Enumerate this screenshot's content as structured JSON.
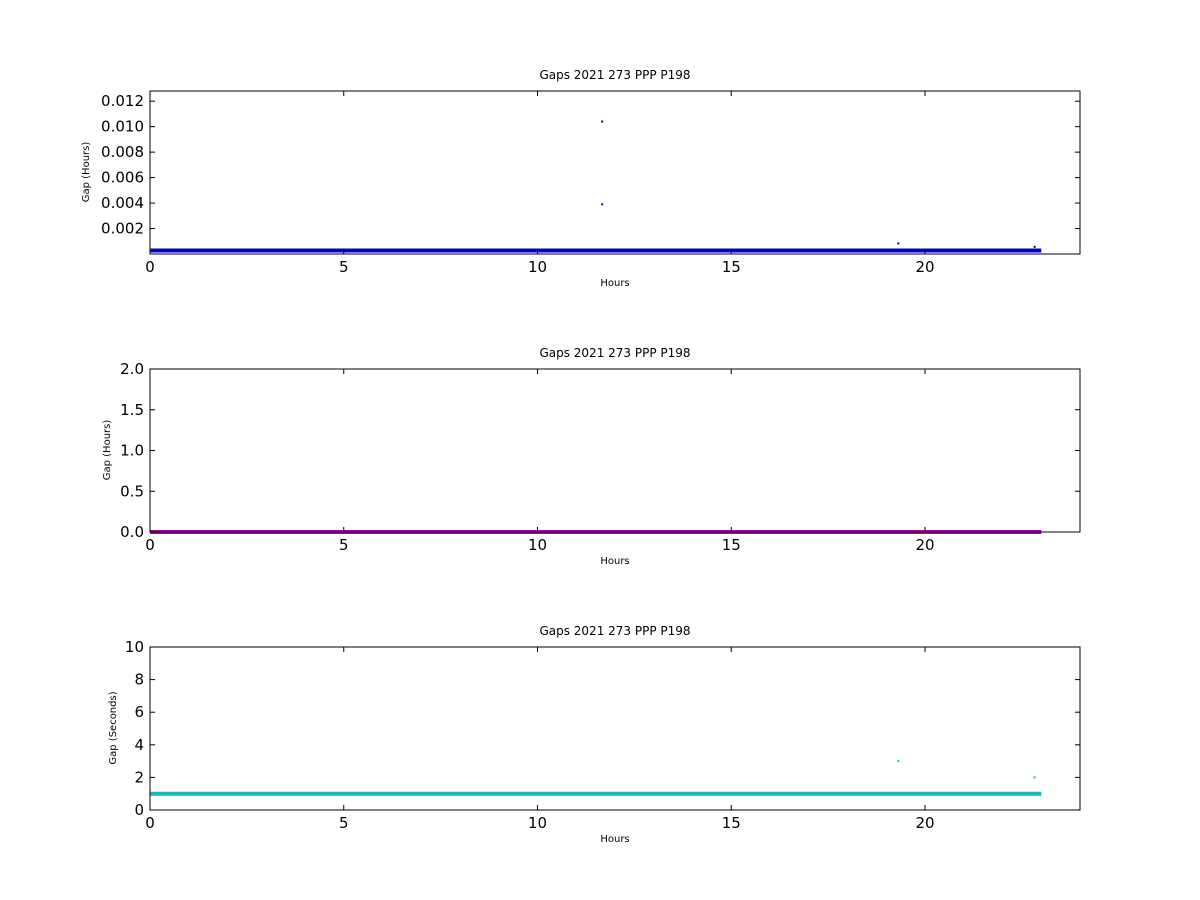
{
  "chart_data": [
    {
      "type": "scatter",
      "title": "Gaps 2021 273 PPP  P198",
      "xlabel": "Hours",
      "ylabel": "Gap (Hours)",
      "xlim": [
        0,
        24
      ],
      "ylim": [
        0,
        0.0128
      ],
      "xticks": [
        0,
        5,
        10,
        15,
        20
      ],
      "xtick_labels": [
        "0",
        "5",
        "10",
        "15",
        "20"
      ],
      "yticks": [
        0.002,
        0.004,
        0.006,
        0.008,
        0.01,
        0.012
      ],
      "ytick_labels": [
        "0.002",
        "0.004",
        "0.006",
        "0.008",
        "0.010",
        "0.012"
      ],
      "grid": false,
      "color": "#0000cc",
      "series": [
        {
          "baseline": {
            "x_start": 0,
            "x_end": 23,
            "y": 0.000278
          },
          "outliers": [
            {
              "x": 11.67,
              "y": 0.0104
            },
            {
              "x": 11.67,
              "y": 0.0039
            },
            {
              "x": 19.31,
              "y": 0.00083
            },
            {
              "x": 22.83,
              "y": 0.00056
            }
          ]
        }
      ]
    },
    {
      "type": "scatter",
      "title": "Gaps 2021 273 PPP  P198",
      "xlabel": "Hours",
      "ylabel": "Gap (Hours)",
      "xlim": [
        0,
        24
      ],
      "ylim": [
        0,
        2.0
      ],
      "xticks": [
        0,
        5,
        10,
        15,
        20
      ],
      "xtick_labels": [
        "0",
        "5",
        "10",
        "15",
        "20"
      ],
      "yticks": [
        0.0,
        0.5,
        1.0,
        1.5,
        2.0
      ],
      "ytick_labels": [
        "0.0",
        "0.5",
        "1.0",
        "1.5",
        "2.0"
      ],
      "grid": false,
      "color": "#aa00aa",
      "series": [
        {
          "baseline": {
            "x_start": 0,
            "x_end": 23,
            "y": 0.0003
          },
          "outliers": []
        }
      ]
    },
    {
      "type": "scatter",
      "title": "Gaps 2021 273 PPP  P198",
      "xlabel": "Hours",
      "ylabel": "Gap (Seconds)",
      "xlim": [
        0,
        24
      ],
      "ylim": [
        0,
        10
      ],
      "xticks": [
        0,
        5,
        10,
        15,
        20
      ],
      "xtick_labels": [
        "0",
        "5",
        "10",
        "15",
        "20"
      ],
      "yticks": [
        0,
        2,
        4,
        6,
        8,
        10
      ],
      "ytick_labels": [
        "0",
        "2",
        "4",
        "6",
        "8",
        "10"
      ],
      "grid": false,
      "color": "#11bbbb",
      "series": [
        {
          "baseline": {
            "x_start": 0,
            "x_end": 23,
            "y": 1.0
          },
          "outliers": [
            {
              "x": 19.31,
              "y": 3.0
            },
            {
              "x": 22.83,
              "y": 2.0
            }
          ]
        }
      ]
    }
  ]
}
